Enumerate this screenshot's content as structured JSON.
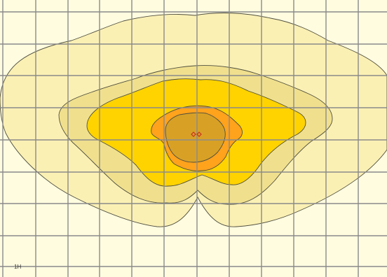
{
  "plot": {
    "corner_label": "1H",
    "background_color": "#FFFCE0",
    "grid_color": "#8A8A8A",
    "contour_line_color": "#4E4E3E",
    "marker_color": "#C8321E",
    "levels": [
      {
        "name": "outer-band",
        "fill": "#FBF0B4"
      },
      {
        "name": "second-band",
        "fill": "#F0E08E"
      },
      {
        "name": "third-band",
        "fill": "#FFD300"
      },
      {
        "name": "fourth-band",
        "fill": "#FFA21C"
      },
      {
        "name": "core-band",
        "fill": "#D8A126"
      }
    ]
  }
}
